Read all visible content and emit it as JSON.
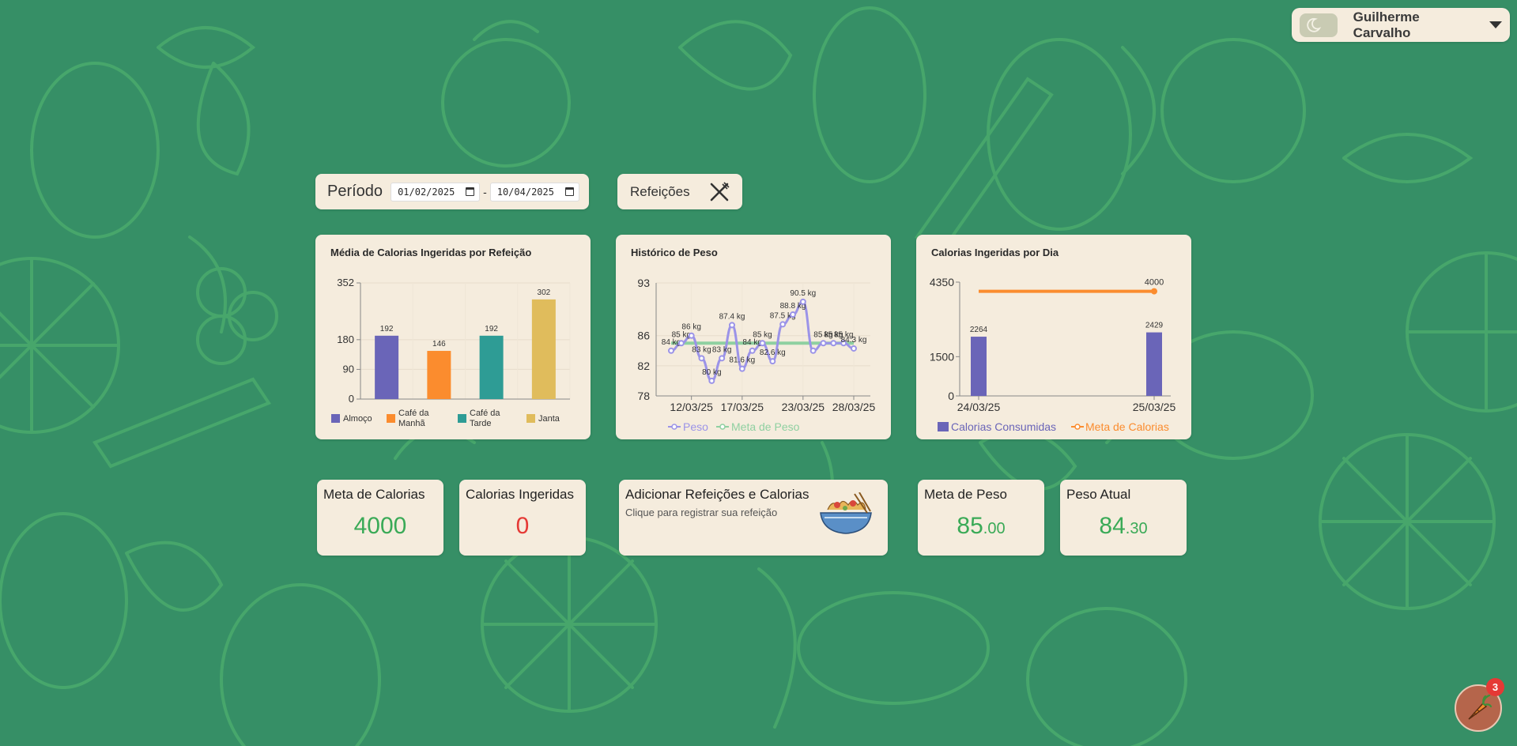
{
  "colors": {
    "background": "#368f66",
    "card": "#f5ecdd",
    "accent_green": "#3aaa57",
    "red": "#e53935"
  },
  "user": {
    "name": "Guilherme Carvalho",
    "theme_icon": "moon-icon"
  },
  "period": {
    "label": "Período",
    "start": "01/02/2025",
    "end": "10/04/2025",
    "separator": "-"
  },
  "meals_button": {
    "label": "Refeições",
    "icon": "utensils-icon"
  },
  "charts": {
    "meal_avg": {
      "title": "Média de Calorias Ingeridas por Refeição"
    },
    "weight": {
      "title": "Histórico de Peso"
    },
    "daily": {
      "title": "Calorias Ingeridas por Dia"
    }
  },
  "stats": {
    "calorie_goal": {
      "label": "Meta de Calorias",
      "value": "4000"
    },
    "calories_eaten": {
      "label": "Calorias Ingeridas",
      "value": "0"
    },
    "weight_goal": {
      "label": "Meta de Peso",
      "int": "85",
      "dec": ".00"
    },
    "current_weight": {
      "label": "Peso Atual",
      "int": "84",
      "dec": ".30"
    }
  },
  "add_meal": {
    "title": "Adicionar Refeições e Calorias",
    "subtitle": "Clique para registrar sua refeição",
    "icon": "noodle-bowl-icon"
  },
  "fab": {
    "icon": "carrot-icon",
    "badge": "3"
  },
  "chart_data": [
    {
      "type": "bar",
      "title": "Média de Calorias Ingeridas por Refeição",
      "categories": [
        "Almoço",
        "Café da Manhã",
        "Café da Tarde",
        "Janta"
      ],
      "values": [
        192,
        146,
        192,
        302
      ],
      "colors": [
        "#6a65b8",
        "#fb8c2e",
        "#2e9c95",
        "#e0bc5c"
      ],
      "yticks": [
        0,
        90,
        180,
        352
      ],
      "ylim": [
        0,
        352
      ],
      "legend": "bottom",
      "grid": true
    },
    {
      "type": "line",
      "title": "Histórico de Peso",
      "x": [
        "10/03/25",
        "11/03/25",
        "12/03/25",
        "13/03/25",
        "14/03/25",
        "15/03/25",
        "16/03/25",
        "17/03/25",
        "18/03/25",
        "19/03/25",
        "20/03/25",
        "21/03/25",
        "22/03/25",
        "23/03/25",
        "24/03/25",
        "25/03/25",
        "26/03/25",
        "27/03/25",
        "28/03/25"
      ],
      "xticks": [
        "12/03/25",
        "17/03/25",
        "23/03/25",
        "28/03/25"
      ],
      "yticks": [
        78,
        82,
        86,
        93
      ],
      "ylim": [
        78,
        93
      ],
      "series": [
        {
          "name": "Peso",
          "color": "#9b93e8",
          "values": [
            84.0,
            85.0,
            86.0,
            83.0,
            80.0,
            83.0,
            87.4,
            81.6,
            84.0,
            85.0,
            82.6,
            87.5,
            88.8,
            90.5,
            84.0,
            85.0,
            85.0,
            85.0,
            84.3
          ],
          "labels": [
            "84 kg",
            "85 kg",
            "86 kg",
            "83 kg",
            "80 kg",
            "83 kg",
            "87.4 kg",
            "81.6 kg",
            "84 kg",
            "85 kg",
            "82.6 kg",
            "87.5 kg",
            "88.8 kg",
            "90.5 kg",
            "",
            "85 kg",
            "85 kg",
            "85 kg",
            "84.3 kg"
          ]
        },
        {
          "name": "Meta de Peso",
          "color": "#8fd0a1",
          "values": [
            85,
            85,
            85,
            85,
            85,
            85,
            85,
            85,
            85,
            85,
            85,
            85,
            85,
            85,
            85,
            85,
            85,
            85,
            85
          ]
        }
      ],
      "legend": "bottom",
      "grid": true
    },
    {
      "type": "bar",
      "title": "Calorias Ingeridas por Dia",
      "categories": [
        "24/03/25",
        "25/03/25"
      ],
      "series": [
        {
          "name": "Calorias Consumidas",
          "type": "bar",
          "color": "#6a65b8",
          "values": [
            2264,
            2429
          ]
        },
        {
          "name": "Meta de Calorias",
          "type": "line",
          "color": "#fb8c2e",
          "values": [
            4000,
            4000
          ],
          "labels": [
            "",
            "4000"
          ]
        }
      ],
      "yticks": [
        0,
        1500,
        4350
      ],
      "ylim": [
        0,
        4350
      ],
      "legend": "bottom",
      "grid": false
    }
  ]
}
